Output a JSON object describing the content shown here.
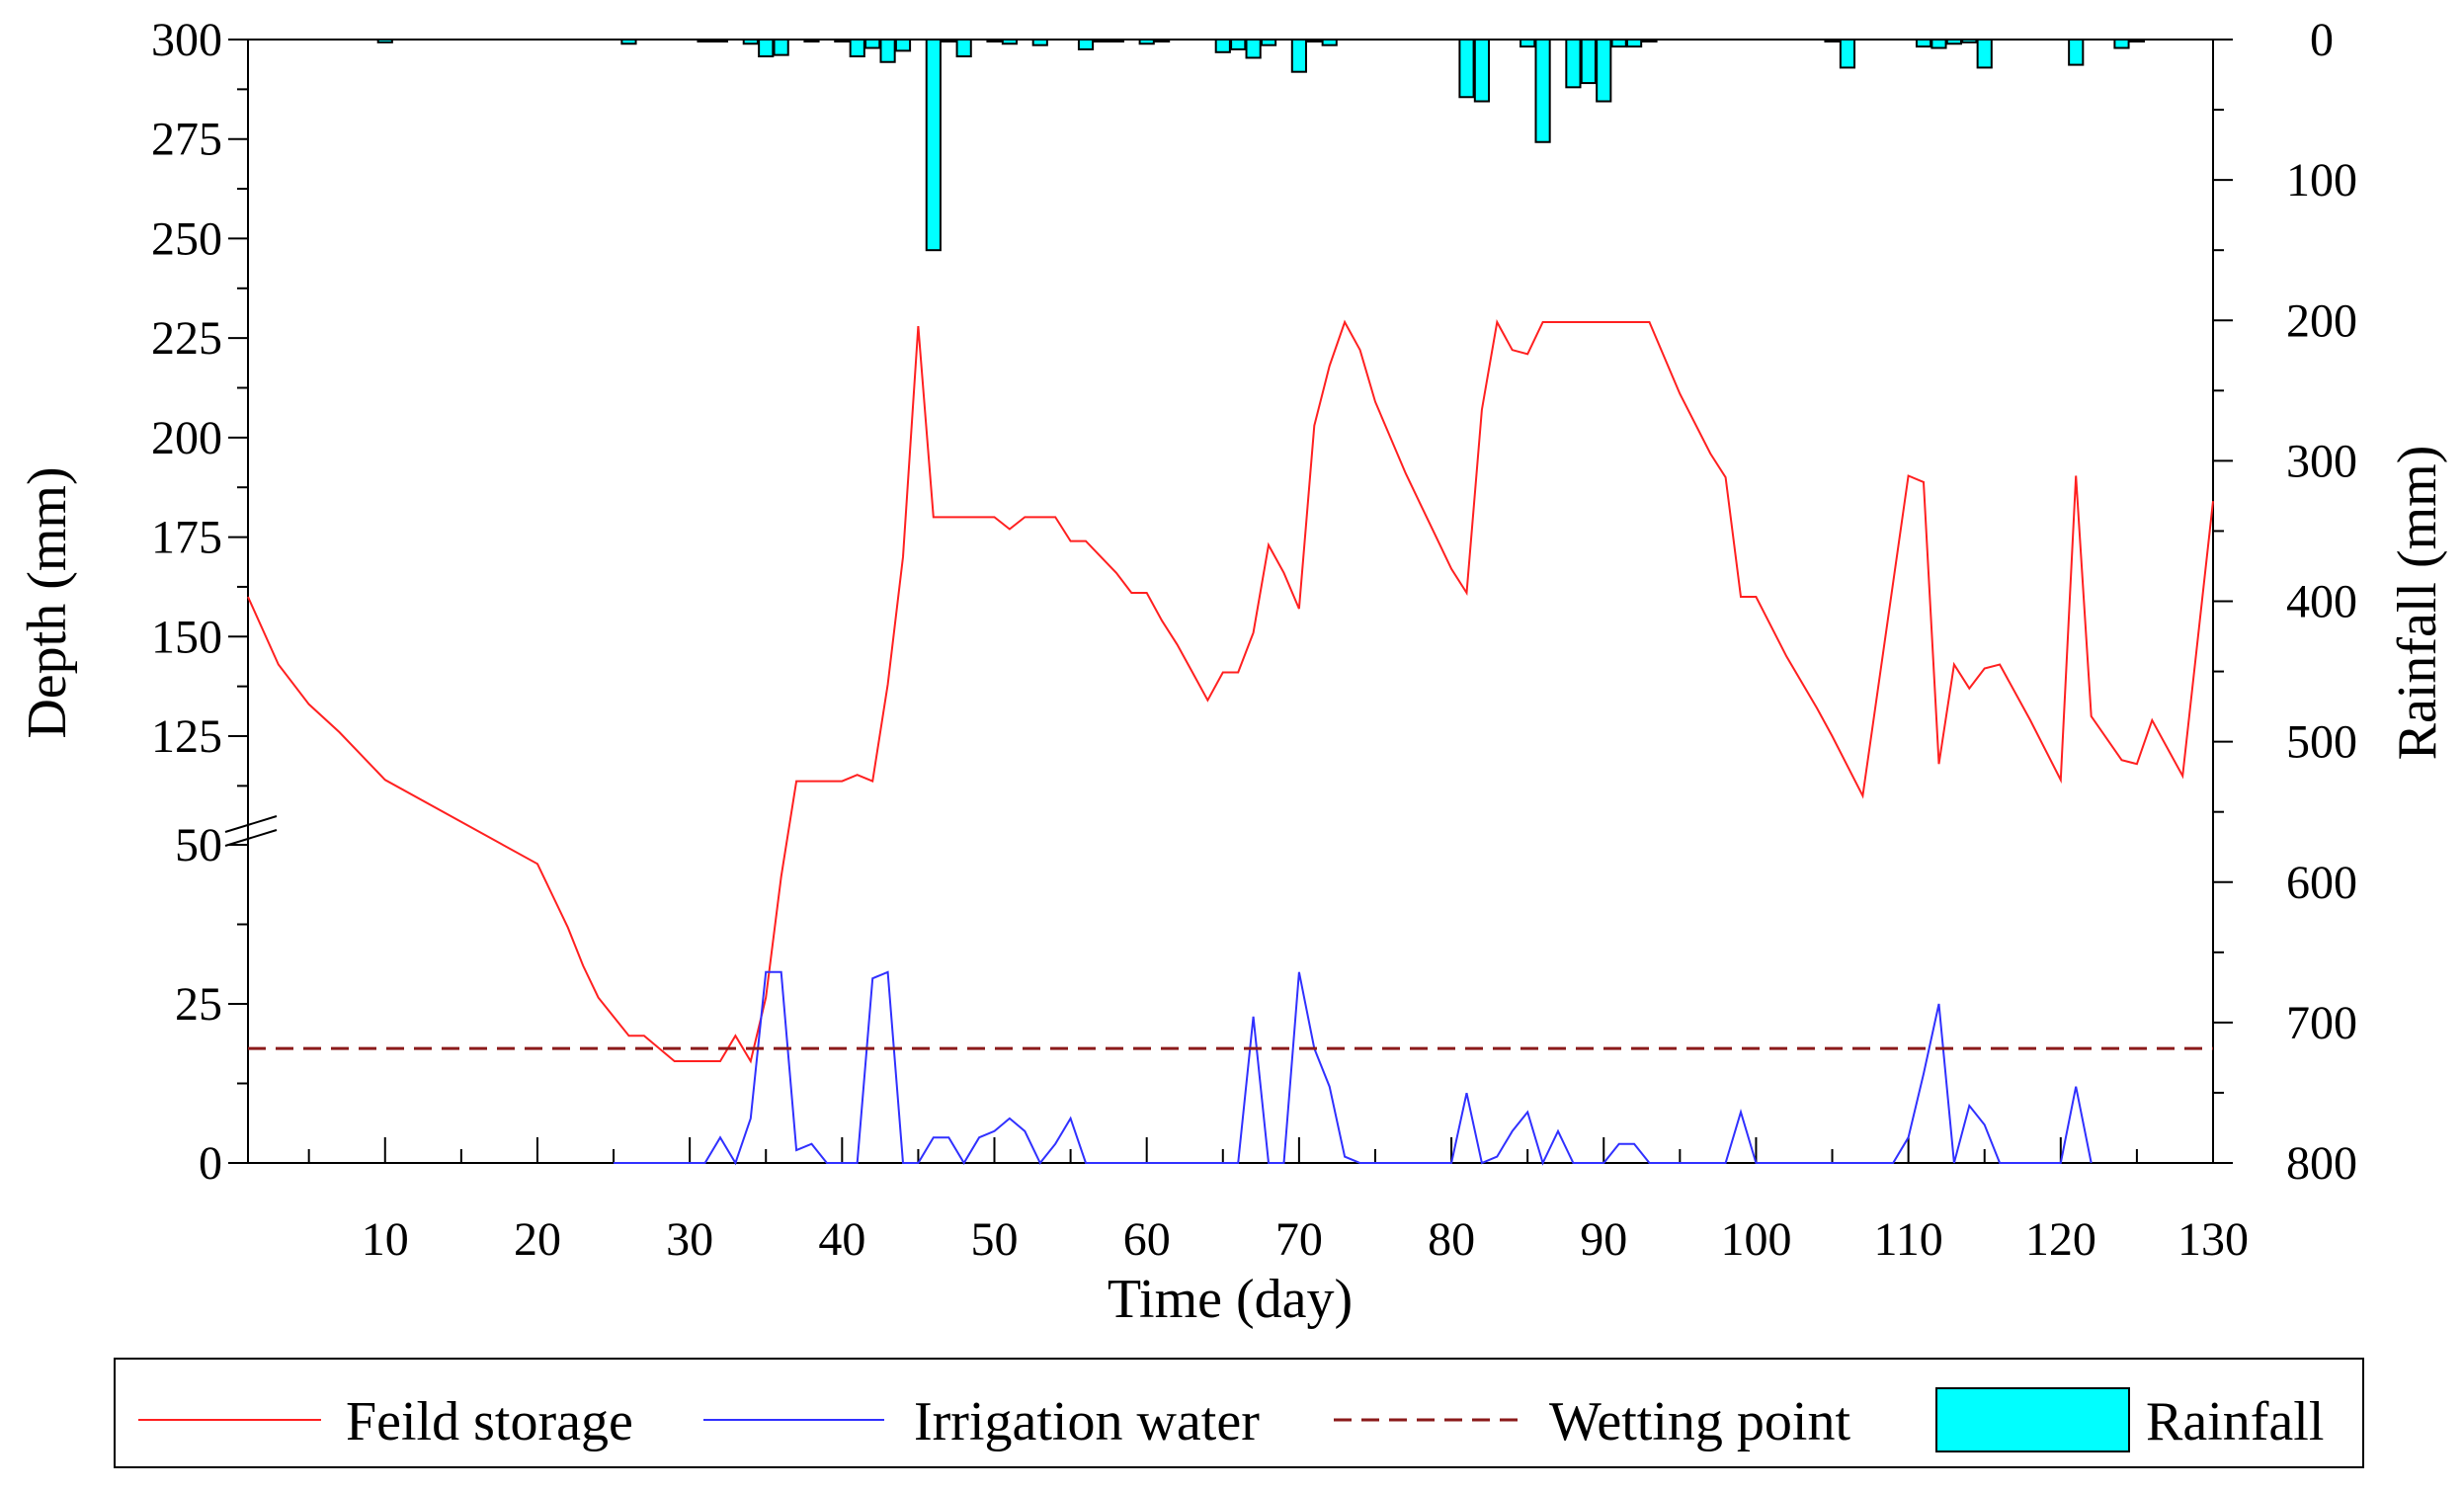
{
  "chart_data": {
    "type": "line",
    "xlabel": "Time (day)",
    "ylabel_left": "Depth (mm)",
    "ylabel_right": "Rainfall (mm)",
    "xlim": [
      1,
      130
    ],
    "x_ticks": [
      10,
      20,
      30,
      40,
      50,
      60,
      70,
      80,
      90,
      100,
      110,
      120,
      130
    ],
    "y_left_ticks_lower": [
      0,
      25,
      50
    ],
    "y_left_ticks_upper": [
      125,
      150,
      175,
      200,
      225,
      250,
      275,
      300
    ],
    "y_left_axis_break": "between 50 and 125",
    "y_right_ticks": [
      0,
      100,
      200,
      300,
      400,
      500,
      600,
      700,
      800
    ],
    "y_right_reversed": true,
    "legend_position": "bottom",
    "series": [
      {
        "name": "Feild storage",
        "color": "#ff2020",
        "style": "solid",
        "x": [
          1,
          3,
          5,
          7,
          10,
          20,
          21,
          22,
          23,
          24,
          25,
          26,
          27,
          28,
          29,
          30,
          32,
          33,
          34,
          35,
          36,
          37,
          40,
          41,
          42,
          43,
          44,
          45,
          46,
          47,
          48,
          49,
          50,
          51,
          52,
          53,
          54,
          55,
          56,
          57,
          58,
          59,
          60,
          61,
          62,
          63,
          64,
          65,
          66,
          67,
          68,
          69,
          70,
          71,
          72,
          73,
          74,
          75,
          76,
          77,
          78,
          79,
          80,
          81,
          82,
          83,
          84,
          85,
          86,
          90,
          93,
          95,
          97,
          98,
          99,
          100,
          102,
          104,
          105,
          107,
          110,
          111,
          112,
          113,
          114,
          115,
          116,
          118,
          120,
          121,
          122,
          124,
          125,
          126,
          128,
          130
        ],
        "y": [
          160,
          143,
          133,
          126,
          114,
          47,
          42,
          37,
          31,
          26,
          23,
          20,
          20,
          18,
          16,
          16,
          16,
          20,
          16,
          26,
          45,
          60,
          60,
          61,
          60,
          138,
          170,
          228,
          180,
          180,
          180,
          180,
          180,
          177,
          180,
          180,
          180,
          174,
          174,
          170,
          166,
          161,
          161,
          154,
          148,
          141,
          134,
          141,
          141,
          151,
          173,
          166,
          157,
          203,
          218,
          229,
          222,
          209,
          200,
          191,
          183,
          175,
          167,
          161,
          207,
          229,
          222,
          221,
          229,
          229,
          229,
          211,
          196,
          190,
          160,
          160,
          145,
          132,
          125,
          110,
          108,
          107,
          118,
          143,
          137,
          142,
          143,
          129,
          114,
          108,
          130,
          119,
          118,
          129,
          115,
          104
        ]
      },
      {
        "name": "Irrigation water",
        "color": "#3030ff",
        "style": "solid",
        "x": [
          25,
          31,
          32,
          33,
          34,
          35,
          36,
          37,
          38,
          39,
          41,
          42,
          43,
          44,
          45,
          46,
          47,
          48,
          49,
          50,
          51,
          52,
          53,
          54,
          55,
          56,
          66,
          67,
          68,
          69,
          70,
          71,
          72,
          73,
          74,
          80,
          81,
          82,
          83,
          84,
          85,
          86,
          87,
          88,
          89,
          90,
          91,
          92,
          93,
          98,
          99,
          100,
          109,
          110,
          111,
          112,
          113,
          114,
          115,
          116,
          120,
          121,
          122
        ],
        "y": [
          0,
          0,
          4,
          0,
          7,
          30,
          30,
          2,
          3,
          0,
          0,
          29,
          30,
          0,
          0,
          4,
          4,
          0,
          4,
          5,
          7,
          5,
          0,
          3,
          7,
          0,
          0,
          23,
          0,
          0,
          30,
          18,
          12,
          1,
          0,
          0,
          11,
          0,
          1,
          5,
          8,
          0,
          5,
          0,
          0,
          0,
          3,
          3,
          0,
          0,
          8,
          0,
          0,
          4,
          14,
          25,
          0,
          9,
          6,
          0,
          0,
          12,
          0
        ]
      },
      {
        "name": "Wetting point",
        "color": "#8b1a1a",
        "style": "dashed",
        "x": [
          1,
          130
        ],
        "y": [
          18,
          18
        ]
      },
      {
        "name": "Rainfall",
        "type": "bar",
        "axis": "right",
        "color": "#00ffff",
        "x": [
          10,
          26,
          31,
          32,
          34,
          35,
          36,
          38,
          40,
          41,
          42,
          43,
          44,
          46,
          47,
          48,
          50,
          51,
          53,
          56,
          57,
          58,
          60,
          61,
          65,
          66,
          67,
          68,
          70,
          71,
          72,
          81,
          82,
          85,
          86,
          88,
          89,
          90,
          91,
          92,
          93,
          105,
          106,
          111,
          112,
          113,
          114,
          115,
          121,
          124,
          125
        ],
        "values": [
          2,
          3,
          1,
          1,
          3,
          12,
          11,
          1,
          1,
          12,
          6,
          16,
          8,
          150,
          1,
          12,
          1,
          3,
          4,
          7,
          1,
          1,
          3,
          1,
          9,
          7,
          13,
          4,
          23,
          1,
          4,
          41,
          44,
          5,
          73,
          34,
          31,
          44,
          5,
          5,
          1,
          1,
          20,
          5,
          6,
          3,
          2,
          20,
          18,
          6,
          1
        ]
      }
    ]
  }
}
